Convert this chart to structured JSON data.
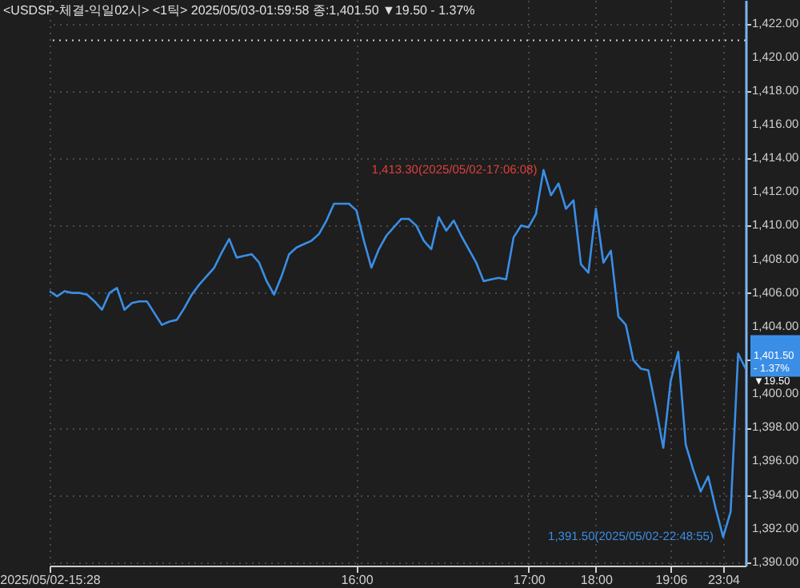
{
  "chart_data": {
    "type": "line",
    "title": "<USDSP-체결-익일02시> <1틱> 2025/05/03-01:59:58 종:1,401.50 ▼19.50 - 1.37%",
    "categories": [
      "2025/05/02-15:28",
      null,
      null,
      null,
      null,
      null,
      null,
      null,
      null,
      null,
      null,
      null,
      null,
      null,
      null,
      null,
      null,
      null,
      null,
      null,
      null,
      null,
      null,
      null,
      null,
      null,
      null,
      null,
      null,
      null,
      null,
      null,
      null,
      null,
      null,
      null,
      null,
      null,
      null,
      null,
      null,
      "16:00",
      null,
      null,
      null,
      null,
      null,
      null,
      null,
      null,
      null,
      null,
      null,
      null,
      null,
      null,
      null,
      null,
      null,
      null,
      null,
      null,
      null,
      null,
      "17:00",
      null,
      null,
      null,
      null,
      null,
      null,
      null,
      null,
      "18:00",
      null,
      null,
      null,
      null,
      null,
      null,
      null,
      null,
      null,
      "19:06",
      null,
      null,
      null,
      null,
      null,
      null,
      "23:04",
      null,
      null,
      null
    ],
    "series": [
      {
        "color": "#3a8ee6",
        "values": [
          1406.1,
          1405.8,
          1406.1,
          1406.0,
          1406.0,
          1405.9,
          1405.5,
          1405.0,
          1406.0,
          1406.3,
          1405.0,
          1405.4,
          1405.5,
          1405.5,
          1404.8,
          1404.1,
          1404.3,
          1404.4,
          1405.1,
          1405.9,
          1406.5,
          1407.0,
          1407.5,
          1408.4,
          1409.2,
          1408.1,
          1408.2,
          1408.3,
          1407.8,
          1406.7,
          1405.9,
          1407.0,
          1408.3,
          1408.7,
          1408.9,
          1409.1,
          1409.5,
          1410.3,
          1411.3,
          1411.3,
          1411.3,
          1410.9,
          1409.1,
          1407.5,
          1408.6,
          1409.4,
          1409.9,
          1410.4,
          1410.4,
          1410.0,
          1409.1,
          1408.6,
          1410.5,
          1409.7,
          1410.3,
          1409.4,
          1408.6,
          1407.8,
          1406.7,
          1406.8,
          1406.9,
          1406.8,
          1409.3,
          1410.0,
          1409.9,
          1410.7,
          1413.3,
          1411.8,
          1412.5,
          1411.0,
          1411.5,
          1407.7,
          1407.2,
          1411.0,
          1407.8,
          1408.5,
          1404.6,
          1404.1,
          1402.0,
          1401.5,
          1401.4,
          1399.2,
          1396.8,
          1400.8,
          1402.5,
          1397.0,
          1395.5,
          1394.2,
          1395.1,
          1393.2,
          1391.5,
          1393.0,
          1402.4,
          1401.5
        ]
      }
    ],
    "ylim": [
      1389.8,
      1423.4
    ],
    "yticks": [
      {
        "value": 1390,
        "label": "1,390.00"
      },
      {
        "value": 1392,
        "label": "1,392.00"
      },
      {
        "value": 1394,
        "label": "1,394.00"
      },
      {
        "value": 1396,
        "label": "1,396.00"
      },
      {
        "value": 1398,
        "label": "1,398.00"
      },
      {
        "value": 1400,
        "label": "1,400.00"
      },
      {
        "value": 1402,
        "label": null
      },
      {
        "value": 1404,
        "label": "1,404.00"
      },
      {
        "value": 1406,
        "label": "1,406.00"
      },
      {
        "value": 1408,
        "label": "1,408.00"
      },
      {
        "value": 1410,
        "label": "1,410.00"
      },
      {
        "value": 1412,
        "label": "1,412.00"
      },
      {
        "value": 1414,
        "label": "1,414.00"
      },
      {
        "value": 1416,
        "label": "1,416.00"
      },
      {
        "value": 1418,
        "label": "1,418.00"
      },
      {
        "value": 1420,
        "label": "1,420.00"
      },
      {
        "value": 1422,
        "label": "1,422.00"
      }
    ],
    "ref_lines": [
      {
        "axis": "y",
        "value": 1421,
        "color": "#cfcfcf",
        "line_style": "dotted"
      }
    ],
    "annotations": [
      "1,413.30(2025/05/02-17:06:08)",
      "1,391.50(2025/05/02-22:48:55)",
      "1,401.50\n- 1.37%\n▼19.50"
    ],
    "grid": true,
    "marker": "none",
    "line_style": "solid"
  }
}
